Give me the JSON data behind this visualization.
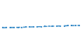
{
  "x": [
    0,
    1,
    2,
    3,
    4,
    5,
    6,
    7,
    8,
    9,
    10,
    11,
    12,
    13,
    14,
    15,
    16,
    17,
    18,
    19,
    20
  ],
  "y": [
    1.0,
    1.05,
    1.1,
    1.15,
    1.2,
    1.25,
    1.3,
    1.35,
    1.4,
    1.45,
    1.5,
    1.55,
    1.6,
    1.65,
    1.7,
    1.75,
    1.8,
    1.85,
    1.9,
    1.95,
    2.0
  ],
  "line_color": "#1a7abf",
  "marker_color": "#1a7abf",
  "bg_color": "#ffffff",
  "ylim": [
    0,
    12
  ],
  "xlim": [
    -0.5,
    20.5
  ],
  "line_width": 1.0,
  "marker_size": 1.5,
  "figsize": [
    1.2,
    0.45
  ],
  "dpi": 100
}
